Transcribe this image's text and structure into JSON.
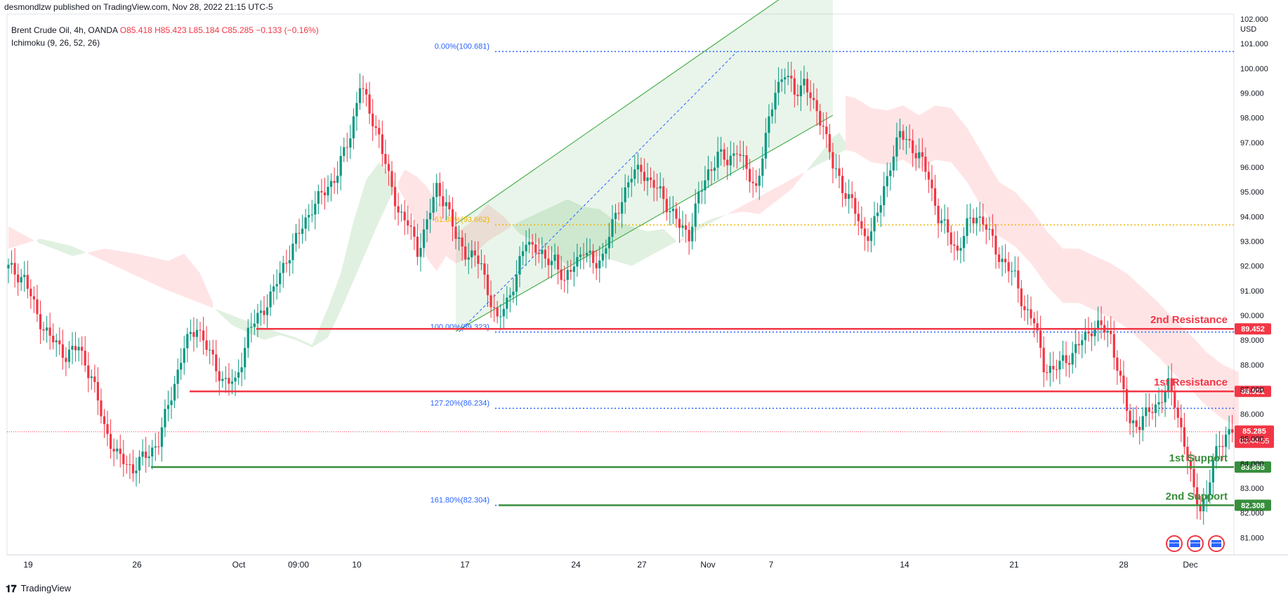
{
  "header": {
    "published": "desmondlzw published on TradingView.com, Nov 28, 2022 21:15 UTC-5"
  },
  "symbol": {
    "name": "Brent Crude Oil, 4h, OANDA",
    "open": "O85.418",
    "high": "H85.423",
    "low": "L85.184",
    "close": "C85.285",
    "change": "−0.133 (−0.16%)",
    "indicator": "Ichimoku (9, 26, 52, 26)"
  },
  "currency": "USD",
  "footer": {
    "brand": "TradingView"
  },
  "chart_data": {
    "type": "line",
    "title": "Brent Crude Oil, 4h, OANDA",
    "ylim": [
      80.3,
      102.2
    ],
    "y_ticks": [
      "81.000",
      "82.000",
      "83.000",
      "84.000",
      "85.000",
      "86.000",
      "87.000",
      "88.000",
      "89.000",
      "90.000",
      "91.000",
      "92.000",
      "93.000",
      "94.000",
      "95.000",
      "96.000",
      "97.000",
      "98.000",
      "99.000",
      "100.000",
      "101.000",
      "102.000"
    ],
    "x_ticks": [
      "19",
      "26",
      "Oct",
      "09:00",
      "10",
      "17",
      "24",
      "27",
      "Nov",
      "7",
      "14",
      "21",
      "28",
      "Dec"
    ],
    "price_path": [
      [
        0,
        91.9
      ],
      [
        5,
        91.5
      ],
      [
        9,
        90.0
      ],
      [
        13,
        89.1
      ],
      [
        18,
        88.4
      ],
      [
        22,
        88.7
      ],
      [
        26,
        87.5
      ],
      [
        30,
        85.5
      ],
      [
        34,
        84.3
      ],
      [
        39,
        83.8
      ],
      [
        43,
        84.3
      ],
      [
        47,
        84.9
      ],
      [
        51,
        86.8
      ],
      [
        55,
        88.7
      ],
      [
        59,
        89.6
      ],
      [
        63,
        88.4
      ],
      [
        67,
        87.4
      ],
      [
        71,
        87.2
      ],
      [
        75,
        89.3
      ],
      [
        79,
        90.1
      ],
      [
        83,
        91.0
      ],
      [
        87,
        92.3
      ],
      [
        91,
        93.3
      ],
      [
        95,
        94.4
      ],
      [
        99,
        95.0
      ],
      [
        103,
        95.8
      ],
      [
        107,
        97.3
      ],
      [
        110,
        99.4
      ],
      [
        113,
        98.2
      ],
      [
        116,
        97.3
      ],
      [
        119,
        95.5
      ],
      [
        122,
        94.3
      ],
      [
        125,
        93.7
      ],
      [
        128,
        92.6
      ],
      [
        131,
        93.8
      ],
      [
        134,
        95.1
      ],
      [
        137,
        94.6
      ],
      [
        140,
        93.1
      ],
      [
        143,
        92.6
      ],
      [
        146,
        92.3
      ],
      [
        148,
        92.0
      ],
      [
        151,
        90.6
      ],
      [
        153,
        89.7
      ],
      [
        156,
        90.6
      ],
      [
        159,
        91.6
      ],
      [
        162,
        93.0
      ],
      [
        165,
        92.8
      ],
      [
        168,
        92.1
      ],
      [
        171,
        92.4
      ],
      [
        174,
        91.2
      ],
      [
        177,
        92.2
      ],
      [
        180,
        92.6
      ],
      [
        183,
        92.1
      ],
      [
        186,
        92.4
      ],
      [
        189,
        93.6
      ],
      [
        192,
        94.8
      ],
      [
        195,
        95.6
      ],
      [
        198,
        96.0
      ],
      [
        201,
        95.3
      ],
      [
        204,
        95.0
      ],
      [
        207,
        94.3
      ],
      [
        210,
        93.6
      ],
      [
        213,
        93.3
      ],
      [
        216,
        94.8
      ],
      [
        219,
        95.8
      ],
      [
        222,
        96.5
      ],
      [
        225,
        96.2
      ],
      [
        228,
        96.8
      ],
      [
        231,
        95.8
      ],
      [
        234,
        95.2
      ],
      [
        237,
        97.1
      ],
      [
        240,
        99.2
      ],
      [
        243,
        99.8
      ],
      [
        246,
        99.0
      ],
      [
        249,
        99.5
      ],
      [
        252,
        98.4
      ],
      [
        255,
        97.8
      ],
      [
        258,
        96.0
      ],
      [
        261,
        95.2
      ],
      [
        264,
        94.6
      ],
      [
        267,
        93.3
      ],
      [
        270,
        93.4
      ],
      [
        273,
        94.5
      ],
      [
        276,
        96.2
      ],
      [
        279,
        97.3
      ],
      [
        282,
        97.0
      ],
      [
        285,
        96.4
      ],
      [
        288,
        95.6
      ],
      [
        291,
        94.0
      ],
      [
        294,
        93.3
      ],
      [
        297,
        92.6
      ],
      [
        300,
        93.6
      ],
      [
        303,
        94.1
      ],
      [
        306,
        93.6
      ],
      [
        309,
        92.6
      ],
      [
        312,
        92.1
      ],
      [
        315,
        91.5
      ],
      [
        318,
        90.3
      ],
      [
        321,
        89.7
      ],
      [
        324,
        88.0
      ],
      [
        327,
        87.7
      ],
      [
        330,
        88.2
      ],
      [
        333,
        88.4
      ],
      [
        336,
        89.0
      ],
      [
        339,
        89.5
      ],
      [
        342,
        89.5
      ],
      [
        345,
        89.2
      ],
      [
        348,
        87.3
      ],
      [
        351,
        85.7
      ],
      [
        354,
        85.6
      ],
      [
        357,
        86.1
      ],
      [
        360,
        86.5
      ],
      [
        363,
        87.1
      ],
      [
        365,
        86.5
      ],
      [
        367,
        85.4
      ],
      [
        369,
        84.2
      ],
      [
        371,
        82.8
      ],
      [
        373,
        82.3
      ],
      [
        375,
        82.7
      ],
      [
        377,
        84.0
      ],
      [
        379,
        84.8
      ],
      [
        381,
        85.2
      ],
      [
        383,
        85.3
      ]
    ],
    "ichimoku_cloud_green": [
      [
        0,
        92.7
      ],
      [
        10,
        93.1
      ],
      [
        20,
        92.8
      ],
      [
        30,
        92.2
      ],
      [
        40,
        91.6
      ],
      [
        50,
        91.0
      ],
      [
        60,
        90.5
      ],
      [
        70,
        90.0
      ],
      [
        80,
        89.5
      ],
      [
        90,
        89.1
      ],
      [
        95,
        88.8
      ],
      [
        100,
        90.3
      ],
      [
        104,
        91.7
      ],
      [
        108,
        93.8
      ],
      [
        112,
        95.5
      ],
      [
        116,
        96.2
      ],
      [
        120,
        95.6
      ],
      [
        124,
        94.7
      ],
      [
        128,
        93.6
      ],
      [
        131,
        92.3
      ],
      [
        134,
        91.8
      ],
      [
        137,
        92.4
      ],
      [
        140,
        92.1
      ],
      [
        145,
        92.4
      ],
      [
        150,
        93.0
      ],
      [
        155,
        93.4
      ],
      [
        160,
        93.8
      ],
      [
        165,
        94.1
      ],
      [
        170,
        94.4
      ],
      [
        175,
        94.7
      ],
      [
        180,
        94.4
      ],
      [
        185,
        94.3
      ],
      [
        190,
        93.8
      ],
      [
        195,
        93.6
      ],
      [
        200,
        93.4
      ],
      [
        205,
        93.5
      ],
      [
        210,
        92.9
      ],
      [
        215,
        93.6
      ],
      [
        220,
        93.9
      ],
      [
        225,
        94.1
      ],
      [
        230,
        94.2
      ],
      [
        235,
        94.1
      ],
      [
        240,
        94.6
      ],
      [
        245,
        95.1
      ],
      [
        250,
        95.9
      ],
      [
        255,
        96.7
      ],
      [
        258,
        97.2
      ],
      [
        260,
        97.4
      ],
      [
        262,
        97.0
      ]
    ],
    "ichimoku_cloud_red": [
      [
        0,
        93.6
      ],
      [
        10,
        92.9
      ],
      [
        20,
        92.4
      ],
      [
        30,
        92.7
      ],
      [
        40,
        92.5
      ],
      [
        50,
        92.2
      ],
      [
        55,
        92.5
      ],
      [
        60,
        91.7
      ],
      [
        65,
        90.2
      ],
      [
        70,
        89.6
      ],
      [
        75,
        89.3
      ],
      [
        80,
        89.0
      ],
      [
        85,
        89.2
      ],
      [
        90,
        89.0
      ],
      [
        95,
        88.7
      ],
      [
        100,
        89.1
      ],
      [
        104,
        90.2
      ],
      [
        108,
        91.4
      ],
      [
        112,
        92.6
      ],
      [
        116,
        93.8
      ],
      [
        120,
        94.9
      ],
      [
        124,
        95.9
      ],
      [
        128,
        95.6
      ],
      [
        131,
        95.2
      ],
      [
        134,
        94.6
      ],
      [
        137,
        94.3
      ],
      [
        140,
        93.3
      ],
      [
        143,
        93.6
      ],
      [
        146,
        93.9
      ],
      [
        150,
        94.5
      ],
      [
        155,
        94.0
      ],
      [
        160,
        93.3
      ],
      [
        165,
        93.0
      ],
      [
        170,
        92.6
      ],
      [
        175,
        92.0
      ],
      [
        180,
        92.3
      ],
      [
        185,
        92.4
      ],
      [
        190,
        92.2
      ],
      [
        195,
        92.0
      ],
      [
        262,
        96.7
      ],
      [
        265,
        96.6
      ],
      [
        270,
        96.2
      ],
      [
        275,
        96.1
      ],
      [
        280,
        96.3
      ],
      [
        285,
        95.9
      ],
      [
        290,
        96.3
      ],
      [
        295,
        96.2
      ],
      [
        300,
        95.4
      ],
      [
        305,
        94.3
      ],
      [
        310,
        93.2
      ],
      [
        315,
        92.8
      ],
      [
        320,
        92.1
      ],
      [
        325,
        91.2
      ],
      [
        330,
        90.5
      ],
      [
        335,
        90.5
      ],
      [
        340,
        90.2
      ],
      [
        345,
        89.9
      ],
      [
        350,
        89.5
      ],
      [
        355,
        88.9
      ],
      [
        360,
        88.3
      ],
      [
        365,
        87.6
      ],
      [
        370,
        87.0
      ],
      [
        375,
        86.3
      ],
      [
        380,
        85.8
      ],
      [
        385,
        85.5
      ]
    ],
    "channel": {
      "lower_start": [
        140,
        89.35
      ],
      "lower_end": [
        258,
        98.1
      ],
      "upper_start": [
        140,
        93.7
      ],
      "upper_end": [
        258,
        104.3
      ]
    },
    "fib_anchor_line": [
      [
        141,
        89.33
      ],
      [
        228,
        100.68
      ]
    ],
    "fib_levels": [
      {
        "label": "0.00%(100.681)",
        "price": 100.681,
        "color": "#2962ff"
      },
      {
        "label": "61.80%(93.662)",
        "price": 93.662,
        "color": "#f0b400"
      },
      {
        "label": "100.00%(89.323)",
        "price": 89.323,
        "color": "#2962ff"
      },
      {
        "label": "127.20%(86.234)",
        "price": 86.234,
        "color": "#2962ff"
      },
      {
        "label": "161.80%(82.304)",
        "price": 82.304,
        "color": "#2962ff"
      }
    ],
    "levels": [
      {
        "name": "2nd Resistance",
        "price": 89.452,
        "label": "89.452",
        "color": "#f23645"
      },
      {
        "name": "1st Resistance",
        "price": 86.921,
        "label": "86.921",
        "color": "#f23645"
      },
      {
        "name": "1st Support",
        "price": 83.855,
        "label": "83.855",
        "color": "#388e3c"
      },
      {
        "name": "2nd Support",
        "price": 82.308,
        "label": "82.308",
        "color": "#388e3c"
      }
    ],
    "last_price": {
      "price": 85.285,
      "label": "85.285",
      "countdown": "03:44:55"
    },
    "colors": {
      "up": "#089981",
      "down": "#f23645",
      "cloud_green": "#c8e6c9",
      "cloud_red": "#ffcdd2",
      "channel": "#4caf50"
    }
  }
}
